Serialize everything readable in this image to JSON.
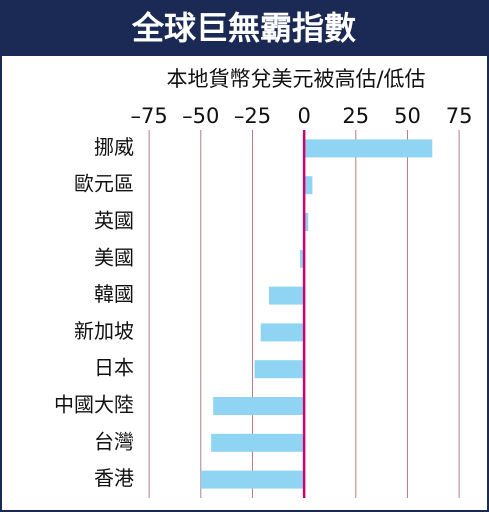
{
  "chart_data": {
    "type": "bar",
    "orientation": "horizontal",
    "title": "全球巨無霸指數",
    "subtitle": "本地貨幣兌美元被高估/低估",
    "categories": [
      "挪威",
      "歐元區",
      "英國",
      "美國",
      "韓國",
      "新加坡",
      "日本",
      "中國大陸",
      "台灣",
      "香港"
    ],
    "values": [
      62,
      4,
      2,
      -2,
      -17,
      -21,
      -24,
      -44,
      -45,
      -50
    ],
    "color": "#8fd4f2",
    "xlim": [
      -77,
      88
    ],
    "xticks": [
      {
        "value": -75,
        "label": "–75"
      },
      {
        "value": -50,
        "label": "–50"
      },
      {
        "value": -25,
        "label": "–25"
      },
      0,
      25,
      50,
      75
    ],
    "grid": true
  }
}
